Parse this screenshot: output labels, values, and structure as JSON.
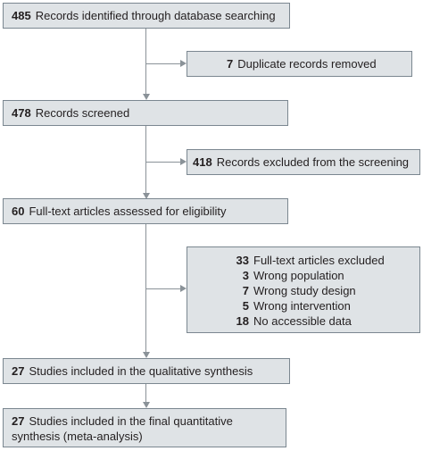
{
  "flow": {
    "identified": {
      "count": "485",
      "label": "Records identified through database searching"
    },
    "duplicates": {
      "count": "7",
      "label": "Duplicate records removed"
    },
    "screened": {
      "count": "478",
      "label": "Records screened"
    },
    "excluded_screening": {
      "count": "418",
      "label": "Records excluded from the screening"
    },
    "eligibility": {
      "count": "60",
      "label": "Full-text articles assessed for eligibility"
    },
    "fulltext_excluded": {
      "count": "33",
      "label": "Full-text articles excluded",
      "reasons": [
        {
          "count": "3",
          "label": "Wrong population"
        },
        {
          "count": "7",
          "label": "Wrong study design"
        },
        {
          "count": "5",
          "label": "Wrong intervention"
        },
        {
          "count": "18",
          "label": "No accessible data"
        }
      ]
    },
    "qualitative": {
      "count": "27",
      "label": "Studies included in the qualitative synthesis"
    },
    "quantitative": {
      "count": "27",
      "label_line1": "Studies included in the final quantitative",
      "label_line2": "synthesis (meta-analysis)"
    }
  }
}
